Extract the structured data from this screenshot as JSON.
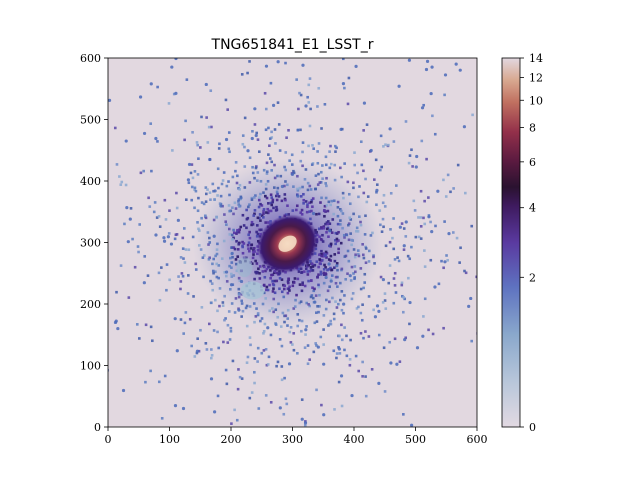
{
  "chart_data": {
    "type": "heatmap",
    "title": "TNG651841_E1_LSST_r",
    "xlabel": "",
    "ylabel": "",
    "xlim": [
      0,
      600
    ],
    "ylim": [
      0,
      600
    ],
    "xticks": [
      "0",
      "100",
      "200",
      "300",
      "400",
      "500",
      "600"
    ],
    "yticks": [
      "0",
      "100",
      "200",
      "300",
      "400",
      "500",
      "600"
    ],
    "background_color": "#e2d8e0",
    "galaxy_center": [
      292,
      298
    ],
    "colorbar": {
      "colormap": "twilight_shifted",
      "ticks": [
        {
          "label": "0",
          "value": 0
        },
        {
          "label": "2",
          "value": 2
        },
        {
          "label": "4",
          "value": 4
        },
        {
          "label": "6",
          "value": 6
        },
        {
          "label": "8",
          "value": 8
        },
        {
          "label": "10",
          "value": 10
        },
        {
          "label": "12",
          "value": 12
        },
        {
          "label": "14",
          "value": 14
        }
      ]
    }
  }
}
